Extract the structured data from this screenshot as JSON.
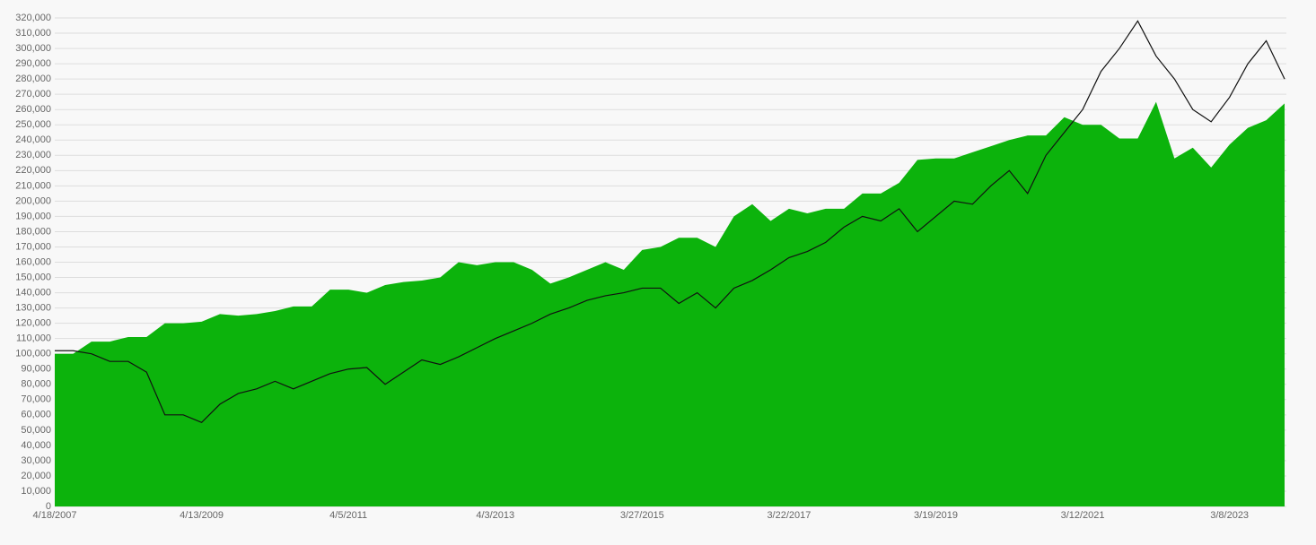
{
  "chart_data": {
    "type": "area_line",
    "categories": [
      "4/18/2007",
      null,
      null,
      null,
      null,
      null,
      null,
      null,
      "4/13/2009",
      null,
      null,
      null,
      null,
      null,
      null,
      null,
      "4/5/2011",
      null,
      null,
      null,
      null,
      null,
      null,
      null,
      "4/3/2013",
      null,
      null,
      null,
      null,
      null,
      null,
      null,
      "3/27/2015",
      null,
      null,
      null,
      null,
      null,
      null,
      null,
      "3/22/2017",
      null,
      null,
      null,
      null,
      null,
      null,
      null,
      "3/19/2019",
      null,
      null,
      null,
      null,
      null,
      null,
      null,
      "3/12/2021",
      null,
      null,
      null,
      null,
      null,
      null,
      null,
      "3/8/2023",
      null,
      null,
      null
    ],
    "series": [
      {
        "kind": "area",
        "color": "#0cb30c",
        "values": [
          100000,
          100000,
          108000,
          108000,
          111000,
          111000,
          120000,
          120000,
          121000,
          126000,
          125000,
          126000,
          128000,
          131000,
          131000,
          142000,
          142000,
          140000,
          145000,
          147000,
          148000,
          150000,
          160000,
          158000,
          160000,
          160000,
          155000,
          146000,
          150000,
          155000,
          160000,
          155000,
          168000,
          170000,
          176000,
          176000,
          170000,
          190000,
          198000,
          187000,
          195000,
          192000,
          195000,
          195000,
          205000,
          205000,
          212000,
          227000,
          228000,
          228000,
          232000,
          236000,
          240000,
          243000,
          243000,
          255000,
          250000,
          250000,
          241000,
          241000,
          265000,
          228000,
          235000,
          222000,
          237000,
          248000,
          253000,
          264000
        ]
      },
      {
        "kind": "line",
        "color": "#111111",
        "values": [
          102000,
          102000,
          100000,
          95000,
          95000,
          88000,
          60000,
          60000,
          55000,
          67000,
          74000,
          77000,
          82000,
          77000,
          82000,
          87000,
          90000,
          91000,
          80000,
          88000,
          96000,
          93000,
          98000,
          104000,
          110000,
          115000,
          120000,
          126000,
          130000,
          135000,
          138000,
          140000,
          143000,
          143000,
          133000,
          140000,
          130000,
          143000,
          148000,
          155000,
          163000,
          167000,
          173000,
          183000,
          190000,
          187000,
          195000,
          180000,
          190000,
          200000,
          198000,
          210000,
          220000,
          205000,
          230000,
          245000,
          260000,
          285000,
          300000,
          318000,
          295000,
          280000,
          260000,
          252000,
          268000,
          290000,
          305000,
          280000
        ]
      }
    ],
    "ylim": [
      0,
      320000
    ],
    "yticks": [
      0,
      {
        "value": 10000,
        "label": "10,000"
      },
      {
        "value": 20000,
        "label": "20,000"
      },
      {
        "value": 30000,
        "label": "30,000"
      },
      {
        "value": 40000,
        "label": "40,000"
      },
      {
        "value": 50000,
        "label": "50,000"
      },
      {
        "value": 60000,
        "label": "60,000"
      },
      {
        "value": 70000,
        "label": "70,000"
      },
      {
        "value": 80000,
        "label": "80,000"
      },
      {
        "value": 90000,
        "label": "90,000"
      },
      {
        "value": 100000,
        "label": "100,000"
      },
      {
        "value": 110000,
        "label": "110,000"
      },
      {
        "value": 120000,
        "label": "120,000"
      },
      {
        "value": 130000,
        "label": "130,000"
      },
      {
        "value": 140000,
        "label": "140,000"
      },
      {
        "value": 150000,
        "label": "150,000"
      },
      {
        "value": 160000,
        "label": "160,000"
      },
      {
        "value": 170000,
        "label": "170,000"
      },
      {
        "value": 180000,
        "label": "180,000"
      },
      {
        "value": 190000,
        "label": "190,000"
      },
      {
        "value": 200000,
        "label": "200,000"
      },
      {
        "value": 210000,
        "label": "210,000"
      },
      {
        "value": 220000,
        "label": "220,000"
      },
      {
        "value": 230000,
        "label": "230,000"
      },
      {
        "value": 240000,
        "label": "240,000"
      },
      {
        "value": 250000,
        "label": "250,000"
      },
      {
        "value": 260000,
        "label": "260,000"
      },
      {
        "value": 270000,
        "label": "270,000"
      },
      {
        "value": 280000,
        "label": "280,000"
      },
      {
        "value": 290000,
        "label": "290,000"
      },
      {
        "value": 300000,
        "label": "300,000"
      },
      {
        "value": 310000,
        "label": "310,000"
      },
      {
        "value": 320000,
        "label": "320,000"
      }
    ],
    "grid": true
  }
}
